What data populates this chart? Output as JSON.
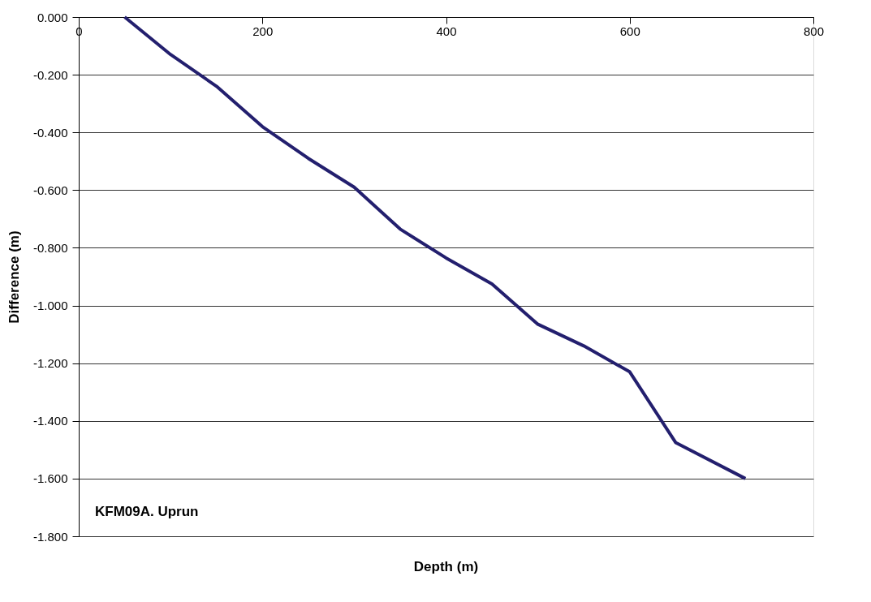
{
  "chart_data": {
    "type": "line",
    "xlabel": "Depth (m)",
    "ylabel": "Difference (m)",
    "annotations": [
      "KFM09A. Uprun"
    ],
    "x": [
      50,
      100,
      150,
      200,
      250,
      300,
      350,
      400,
      450,
      500,
      550,
      600,
      650,
      726
    ],
    "series": [
      {
        "color": "#231f6e",
        "values": [
          0,
          -0.13,
          -0.24,
          -0.38,
          -0.49,
          -0.59,
          -0.735,
          -0.835,
          -0.925,
          -1.065,
          -1.14,
          -1.23,
          -1.475,
          -1.6
        ]
      }
    ],
    "xlim": [
      0,
      800
    ],
    "xticks": [
      0,
      200,
      400,
      600,
      800
    ],
    "ylim": [
      -1.8,
      0
    ],
    "yticks": [
      {
        "value": 0,
        "label": "0.000"
      },
      {
        "value": -0.2,
        "label": "-0.200"
      },
      {
        "value": -0.4,
        "label": "-0.400"
      },
      {
        "value": -0.6,
        "label": "-0.600"
      },
      {
        "value": -0.8,
        "label": "-0.800"
      },
      {
        "value": -1.0,
        "label": "-1.000"
      },
      {
        "value": -1.2,
        "label": "-1.200"
      },
      {
        "value": -1.4,
        "label": "-1.400"
      },
      {
        "value": -1.6,
        "label": "-1.600"
      },
      {
        "value": -1.8,
        "label": "-1.800"
      }
    ],
    "grid": "y",
    "marker": "none",
    "line_style": "solid"
  }
}
